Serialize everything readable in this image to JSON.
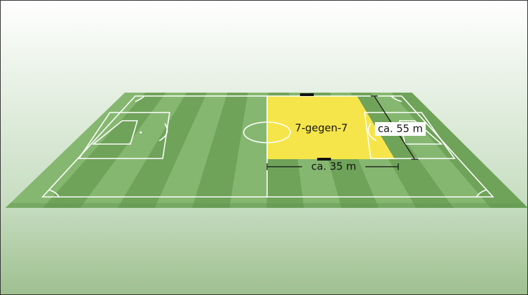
{
  "field": {
    "area_label": "7-gegen-7",
    "length_label": "ca. 55 m",
    "width_label": "ca. 35 m"
  }
}
